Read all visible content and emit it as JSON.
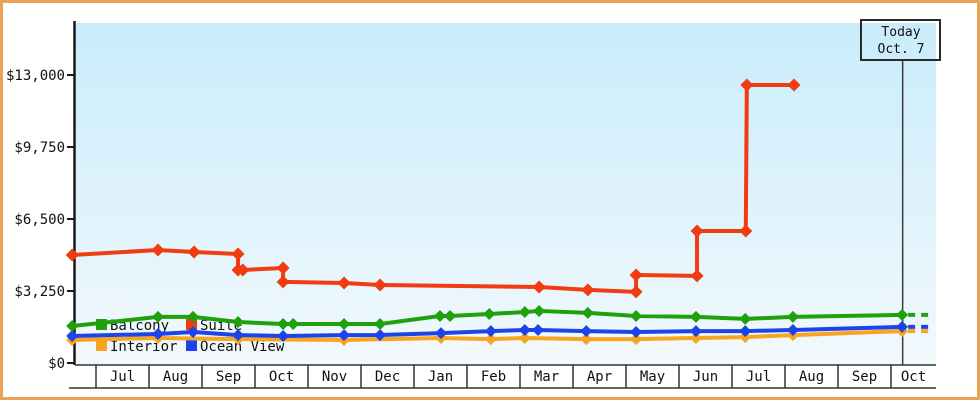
{
  "window": {
    "title": "Cruise price history chart"
  },
  "chart_data": {
    "type": "line",
    "title": "",
    "xlabel": "",
    "ylabel": "",
    "grid": false,
    "legend_position": "bottom-left-inside",
    "y_axis": {
      "max": 13000,
      "min": 0,
      "ticks": [
        {
          "value": 0,
          "label": "$0"
        },
        {
          "value": 3250,
          "label": "$3,250"
        },
        {
          "value": 6500,
          "label": "$6,500"
        },
        {
          "value": 9750,
          "label": "$9,750"
        },
        {
          "value": 13000,
          "label": "$13,000"
        }
      ]
    },
    "x_axis": {
      "month_labels": [
        "Jul",
        "Aug",
        "Sep",
        "Oct",
        "Nov",
        "Dec",
        "Jan",
        "Feb",
        "Mar",
        "Apr",
        "May",
        "Jun",
        "Jul",
        "Aug",
        "Sep",
        "Oct"
      ]
    },
    "today": {
      "line1": "Today",
      "line2": "Oct. 7",
      "month_position": 15.22
    },
    "legend": [
      {
        "label": "Balcony",
        "series": "balcony",
        "col": 0,
        "row": 0
      },
      {
        "label": "Suite",
        "series": "suite",
        "col": 1,
        "row": 0
      },
      {
        "label": "Interior",
        "series": "interior",
        "col": 0,
        "row": 1
      },
      {
        "label": "Ocean View",
        "series": "ocean_view",
        "col": 1,
        "row": 1
      }
    ],
    "series": [
      {
        "id": "interior",
        "name": "Interior",
        "color": "#f7a41f",
        "dash_to": 15.8,
        "marker": "diamond",
        "points": [
          [
            -0.45,
            1040
          ],
          [
            1.17,
            1130
          ],
          [
            2.68,
            1080
          ],
          [
            4.68,
            1040
          ],
          [
            6.51,
            1130
          ],
          [
            7.45,
            1080
          ],
          [
            8.09,
            1130
          ],
          [
            9.25,
            1080
          ],
          [
            10.19,
            1080
          ],
          [
            11.32,
            1130
          ],
          [
            12.25,
            1170
          ],
          [
            13.15,
            1260
          ],
          [
            15.21,
            1440
          ]
        ]
      },
      {
        "id": "ocean_view",
        "name": "Ocean View",
        "color": "#1c44e8",
        "dash_to": 15.8,
        "marker": "diamond",
        "points": [
          [
            -0.45,
            1220
          ],
          [
            1.17,
            1310
          ],
          [
            1.83,
            1400
          ],
          [
            2.68,
            1260
          ],
          [
            3.53,
            1220
          ],
          [
            4.68,
            1260
          ],
          [
            5.36,
            1260
          ],
          [
            6.51,
            1350
          ],
          [
            7.45,
            1440
          ],
          [
            8.09,
            1490
          ],
          [
            8.34,
            1490
          ],
          [
            9.25,
            1440
          ],
          [
            10.19,
            1400
          ],
          [
            11.32,
            1440
          ],
          [
            12.25,
            1440
          ],
          [
            13.15,
            1490
          ],
          [
            15.21,
            1630
          ]
        ]
      },
      {
        "id": "balcony",
        "name": "Balcony",
        "color": "#1fa10c",
        "dash_to": 15.8,
        "marker": "diamond",
        "points": [
          [
            -0.45,
            1670
          ],
          [
            1.17,
            2080
          ],
          [
            1.83,
            2080
          ],
          [
            2.68,
            1850
          ],
          [
            3.53,
            1760
          ],
          [
            3.72,
            1760
          ],
          [
            4.68,
            1760
          ],
          [
            5.36,
            1760
          ],
          [
            6.49,
            2120
          ],
          [
            6.68,
            2120
          ],
          [
            7.42,
            2210
          ],
          [
            8.09,
            2300
          ],
          [
            8.36,
            2350
          ],
          [
            9.28,
            2260
          ],
          [
            10.19,
            2120
          ],
          [
            11.32,
            2080
          ],
          [
            12.25,
            1990
          ],
          [
            13.15,
            2080
          ],
          [
            15.21,
            2170
          ]
        ]
      },
      {
        "id": "suite",
        "name": "Suite",
        "color": "#f03c10",
        "dash_to": null,
        "marker": "diamond",
        "points": [
          [
            -0.45,
            4875
          ],
          [
            1.17,
            5100
          ],
          [
            1.85,
            5010
          ],
          [
            2.68,
            4920
          ],
          [
            2.68,
            4200
          ],
          [
            2.77,
            4200
          ],
          [
            3.53,
            4290
          ],
          [
            3.53,
            3660
          ],
          [
            4.68,
            3610
          ],
          [
            5.36,
            3520
          ],
          [
            8.36,
            3430
          ],
          [
            9.28,
            3300
          ],
          [
            10.19,
            3210
          ],
          [
            10.19,
            3970
          ],
          [
            11.34,
            3930
          ],
          [
            11.34,
            5960
          ],
          [
            12.26,
            5960
          ],
          [
            12.28,
            12550
          ],
          [
            13.17,
            12550
          ]
        ]
      }
    ]
  },
  "colors": {
    "frame_border": "#e8a558",
    "plot_bg_top": "#c9ecfb",
    "plot_bg_bottom": "#f2f9fd",
    "axis": "#1a1a1a",
    "band_line": "#333333",
    "today_line": "#3a3a3a",
    "today_box_border": "#2a2a2a",
    "text": "#111111"
  }
}
